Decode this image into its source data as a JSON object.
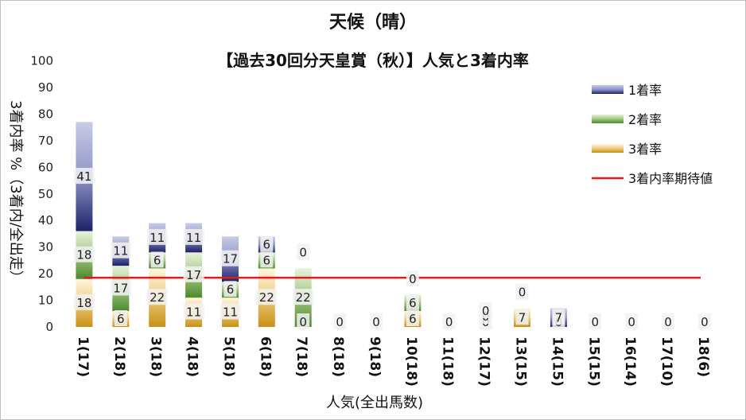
{
  "chart_data": {
    "type": "bar",
    "title": "天候（晴）",
    "subtitle": "【過去30回分天皇賞（秋）】人気と3着内率",
    "xlabel": "人気(全出馬数)",
    "ylabel": "3着内率 %（3着内/全出走）",
    "ylim": [
      0,
      100
    ],
    "y_ticks": [
      "0",
      "10",
      "20",
      "30",
      "40",
      "50",
      "60",
      "70",
      "80",
      "90",
      "100"
    ],
    "stacked": true,
    "grid": false,
    "legend_position": "top-right",
    "categories": [
      "1(17)",
      "2(18)",
      "3(18)",
      "4(18)",
      "5(18)",
      "6(18)",
      "7(18)",
      "8(18)",
      "9(18)",
      "10(18)",
      "11(18)",
      "12(17)",
      "13(15)",
      "14(15)",
      "15(15)",
      "16(14)",
      "17(10)",
      "18(6)"
    ],
    "series": [
      {
        "name": "3着率",
        "color": "#e3b23c",
        "values": [
          18,
          6,
          22,
          11,
          11,
          22,
          0,
          0,
          0,
          6,
          0,
          0,
          7,
          0,
          0,
          0,
          0,
          0
        ]
      },
      {
        "name": "2着率",
        "color": "#70a84f",
        "values": [
          18,
          17,
          6,
          17,
          6,
          6,
          22,
          0,
          0,
          6,
          0,
          0,
          0,
          0,
          0,
          0,
          0,
          0
        ]
      },
      {
        "name": "1着率",
        "color": "#3b4690",
        "values": [
          41,
          11,
          11,
          11,
          17,
          6,
          0,
          0,
          0,
          0,
          0,
          0,
          0,
          7,
          0,
          0,
          0,
          0
        ]
      }
    ],
    "labels": [
      [
        "18",
        "6",
        "22",
        "11",
        "11",
        "22",
        "0",
        "0",
        "0",
        "6",
        "0",
        "0",
        "7",
        "0",
        "0",
        "0",
        "0",
        "0"
      ],
      [
        "18",
        "17",
        "6",
        "17",
        "6",
        "6",
        "22",
        "",
        "",
        "6",
        "",
        "0",
        "",
        "",
        "",
        "",
        "",
        ""
      ],
      [
        "41",
        "11",
        "11",
        "11",
        "17",
        "6",
        "0",
        "",
        "",
        "0",
        "",
        "0",
        "0",
        "7",
        "",
        "",
        "",
        ""
      ]
    ],
    "reference_line": {
      "name": "3着内率期待値",
      "value": 18.5,
      "color": "#e31a1a"
    }
  }
}
